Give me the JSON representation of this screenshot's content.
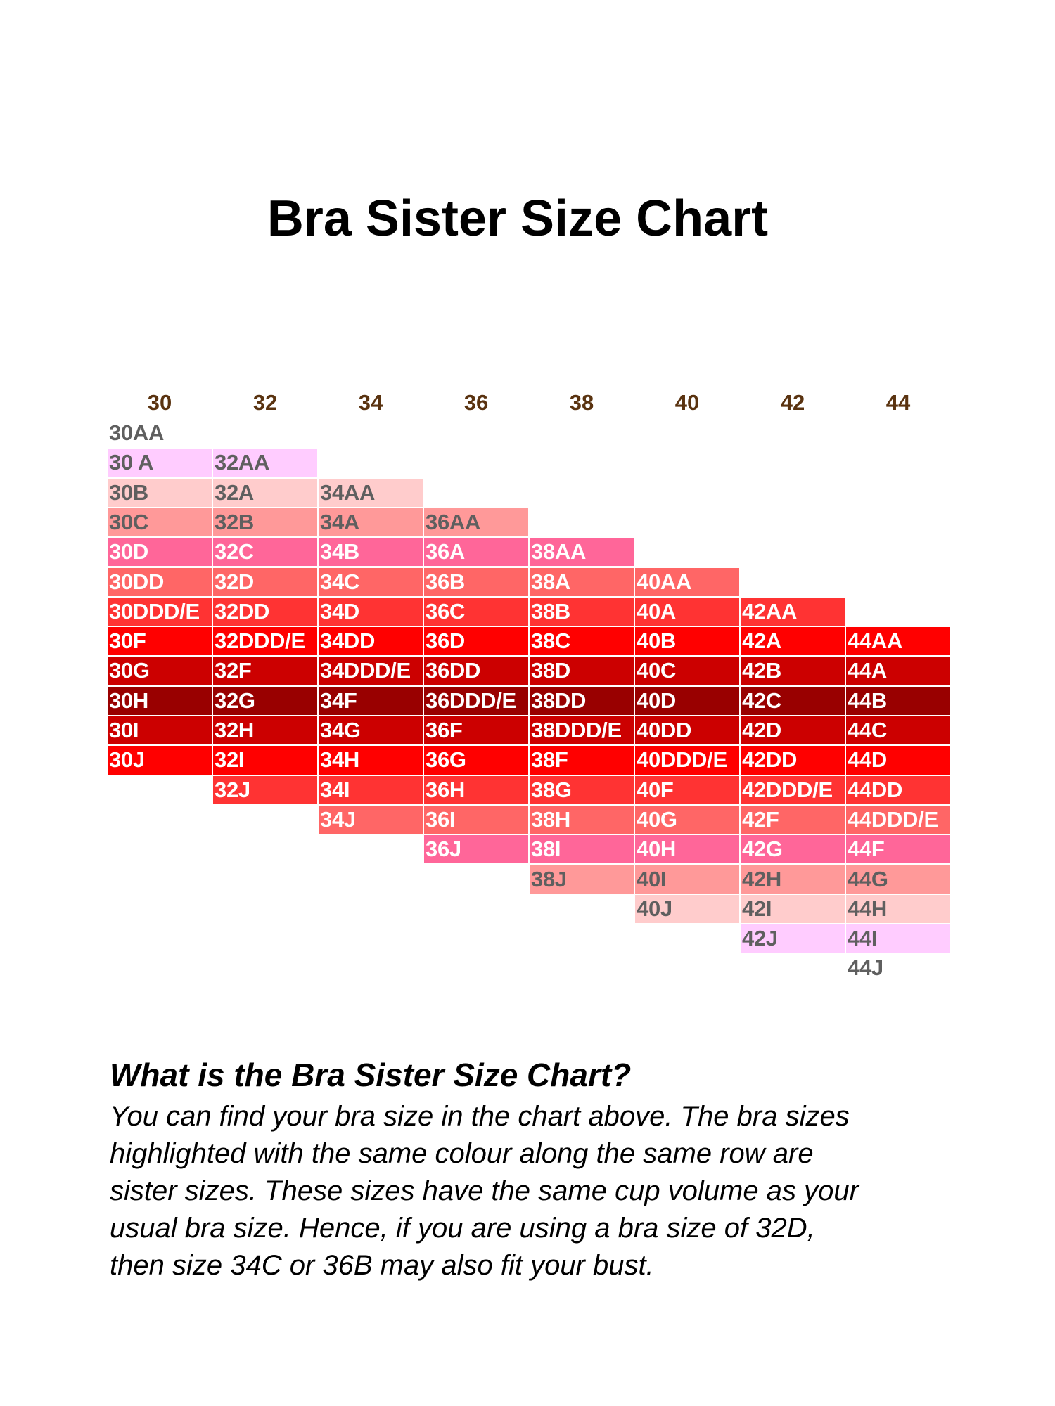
{
  "chart_data": {
    "type": "table",
    "title": "Bra Sister Size Chart",
    "columns": [
      {
        "band": "30",
        "sizes": [
          "30AA",
          "30 A",
          "30B",
          "30C",
          "30D",
          "30DD",
          "30DDD/E",
          "30F",
          "30G",
          "30H",
          "30I",
          "30J"
        ]
      },
      {
        "band": "32",
        "sizes": [
          "32AA",
          "32A",
          "32B",
          "32C",
          "32D",
          "32DD",
          "32DDD/E",
          "32F",
          "32G",
          "32H",
          "32I",
          "32J"
        ]
      },
      {
        "band": "34",
        "sizes": [
          "34AA",
          "34A",
          "34B",
          "34C",
          "34D",
          "34DD",
          "34DDD/E",
          "34F",
          "34G",
          "34H",
          "34I",
          "34J"
        ]
      },
      {
        "band": "36",
        "sizes": [
          "36AA",
          "36A",
          "36B",
          "36C",
          "36D",
          "36DD",
          "36DDD/E",
          "36F",
          "36G",
          "36H",
          "36I",
          "36J"
        ]
      },
      {
        "band": "38",
        "sizes": [
          "38AA",
          "38A",
          "38B",
          "38C",
          "38D",
          "38DD",
          "38DDD/E",
          "38F",
          "38G",
          "38H",
          "38I",
          "38J"
        ]
      },
      {
        "band": "40",
        "sizes": [
          "40AA",
          "40A",
          "40B",
          "40C",
          "40D",
          "40DD",
          "40DDD/E",
          "40F",
          "40G",
          "40H",
          "40I",
          "40J"
        ]
      },
      {
        "band": "42",
        "sizes": [
          "42AA",
          "42A",
          "42B",
          "42C",
          "42D",
          "42DD",
          "42DDD/E",
          "42F",
          "42G",
          "42H",
          "42I",
          "42J"
        ]
      },
      {
        "band": "44",
        "sizes": [
          "44AA",
          "44A",
          "44B",
          "44C",
          "44D",
          "44DD",
          "44DDD/E",
          "44F",
          "44G",
          "44H",
          "44I",
          "44J"
        ]
      }
    ],
    "row_colors": [
      "#ffffff",
      "#ffccff",
      "#ffcccc",
      "#ff9999",
      "#ff6699",
      "#ff6666",
      "#ff3333",
      "#ff0000",
      "#cc0000",
      "#990000",
      "#cc0000",
      "#ff0000",
      "#ff3333",
      "#ff6666",
      "#ff6699",
      "#ff9999",
      "#ffcccc",
      "#ffccff",
      "#ffffff"
    ],
    "dark_text_color": "#5f5f5f",
    "light_text_color": "#ffffff",
    "header_color": "#5a3310"
  },
  "info": {
    "question": "What is the Bra Sister Size Chart?",
    "paragraph_lines": [
      "You can find your bra size in the chart above. The bra sizes",
      "highlighted with the same colour along the same row are",
      "sister sizes. These sizes have the same cup volume as your",
      "usual bra size. Hence, if you are using a bra size of 32D,",
      "then size 34C or 36B may also fit your bust."
    ]
  }
}
